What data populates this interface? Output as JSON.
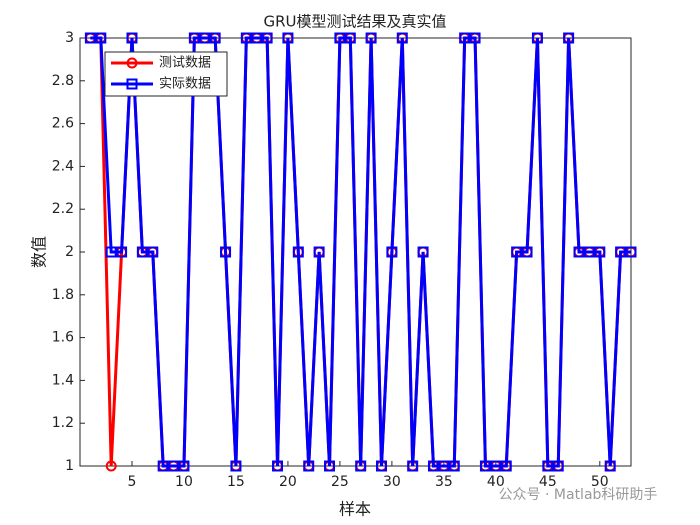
{
  "chart_data": {
    "type": "line",
    "title": "GRU模型测试结果及真实值",
    "x_label": "样本",
    "y_label": "数值",
    "x": [
      1,
      2,
      3,
      4,
      5,
      6,
      7,
      8,
      9,
      10,
      11,
      12,
      13,
      14,
      15,
      16,
      17,
      18,
      19,
      20,
      21,
      22,
      23,
      24,
      25,
      26,
      27,
      28,
      29,
      30,
      31,
      32,
      33,
      34,
      35,
      36,
      37,
      38,
      39,
      40,
      41,
      42,
      43,
      44,
      45,
      46,
      47,
      48,
      49,
      50,
      51,
      52,
      53
    ],
    "series": [
      {
        "name": "测试数据",
        "color": "#ff0000",
        "marker": "circle",
        "values": [
          3,
          3,
          1,
          2,
          3,
          2,
          2,
          1,
          1,
          1,
          3,
          3,
          3,
          2,
          1,
          3,
          3,
          3,
          1,
          3,
          2,
          1,
          2,
          1,
          3,
          3,
          1,
          3,
          1,
          2,
          3,
          1,
          2,
          1,
          1,
          1,
          3,
          3,
          1,
          1,
          1,
          2,
          2,
          3,
          1,
          1,
          3,
          2,
          2,
          2,
          1,
          2,
          2
        ]
      },
      {
        "name": "实际数据",
        "color": "#0000ff",
        "marker": "square",
        "values": [
          3,
          3,
          2,
          2,
          3,
          2,
          2,
          1,
          1,
          1,
          3,
          3,
          3,
          2,
          1,
          3,
          3,
          3,
          1,
          3,
          2,
          1,
          2,
          1,
          3,
          3,
          1,
          3,
          1,
          2,
          3,
          1,
          2,
          1,
          1,
          1,
          3,
          3,
          1,
          1,
          1,
          2,
          2,
          3,
          1,
          1,
          3,
          2,
          2,
          2,
          1,
          2,
          2
        ]
      }
    ],
    "xlim": [
      0,
      53
    ],
    "xticks": [
      5,
      10,
      15,
      20,
      25,
      30,
      35,
      40,
      45,
      50
    ],
    "ylim": [
      1,
      3
    ],
    "yticks": [
      1,
      {
        "value": 1.2,
        "label": "1.2"
      },
      {
        "value": 1.4,
        "label": "1.4"
      },
      {
        "value": 1.6,
        "label": "1.6"
      },
      {
        "value": 1.8,
        "label": "1.8"
      },
      2,
      {
        "value": 2.2,
        "label": "2.2"
      },
      {
        "value": 2.4,
        "label": "2.4"
      },
      {
        "value": 2.6,
        "label": "2.6"
      },
      {
        "value": 2.8,
        "label": "2.8"
      },
      3
    ],
    "legend": "upper left"
  },
  "watermark": "公众号 · Matlab科研助手"
}
